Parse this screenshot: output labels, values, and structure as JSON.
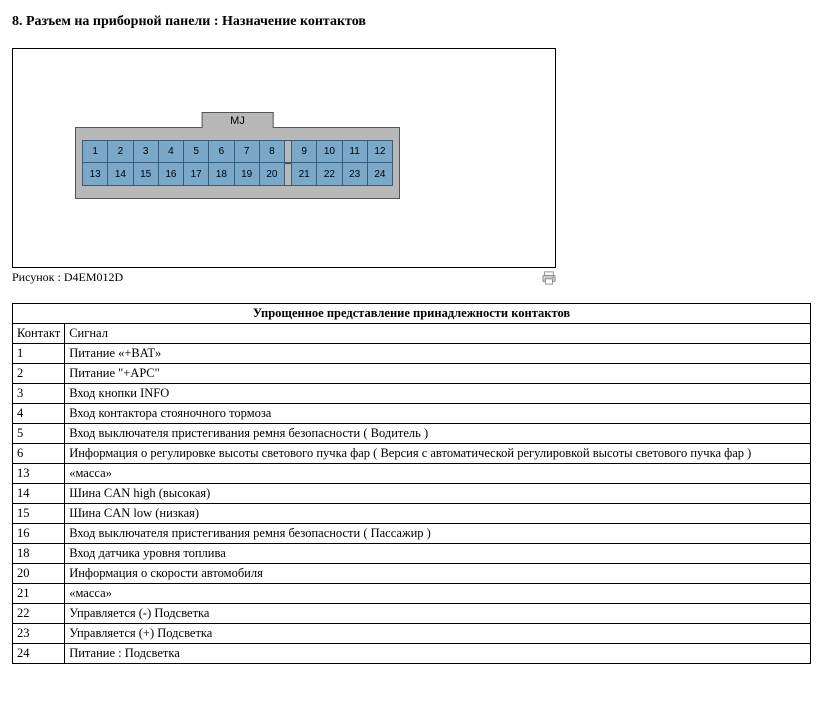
{
  "heading": "8. Разъем на приборной панели : Назначение контактов",
  "connector": {
    "label": "MJ",
    "row1": [
      "1",
      "2",
      "3",
      "4",
      "5",
      "6",
      "7",
      "8",
      "9",
      "10",
      "11",
      "12"
    ],
    "row2": [
      "13",
      "14",
      "15",
      "16",
      "17",
      "18",
      "19",
      "20",
      "21",
      "22",
      "23",
      "24"
    ],
    "pin_fill": "#7aa8c8",
    "pin_border": "#3a5a7a",
    "body_fill": "#b8b8b8",
    "gap_after_index": 7
  },
  "caption": "Рисунок : D4EM012D",
  "table": {
    "title": "Упрощенное представление принадлежности контактов",
    "headers": {
      "contact": "Контакт",
      "signal": "Сигнал"
    },
    "rows": [
      {
        "c": "1",
        "s": "Питание «+BAT»"
      },
      {
        "c": "2",
        "s": "Питание \"+APC\""
      },
      {
        "c": "3",
        "s": "Вход кнопки INFO"
      },
      {
        "c": "4",
        "s": "Вход контактора стояночного тормоза"
      },
      {
        "c": "5",
        "s": "Вход выключателя пристегивания ремня безопасности ( Водитель )"
      },
      {
        "c": "6",
        "s": "Информация о регулировке высоты светового пучка фар ( Версия с автоматической регулировкой высоты светового пучка фар )"
      },
      {
        "c": "13",
        "s": "«масса»"
      },
      {
        "c": "14",
        "s": "Шина CAN high (высокая)"
      },
      {
        "c": "15",
        "s": "Шина CAN low (низкая)"
      },
      {
        "c": "16",
        "s": "Вход выключателя пристегивания ремня безопасности ( Пассажир )"
      },
      {
        "c": "18",
        "s": "Вход датчика уровня топлива"
      },
      {
        "c": "20",
        "s": "Информация о скорости автомобиля"
      },
      {
        "c": "21",
        "s": "«масса»"
      },
      {
        "c": "22",
        "s": "Управляется (-) Подсветка"
      },
      {
        "c": "23",
        "s": "Управляется (+) Подсветка"
      },
      {
        "c": "24",
        "s": "Питание : Подсветка"
      }
    ]
  }
}
